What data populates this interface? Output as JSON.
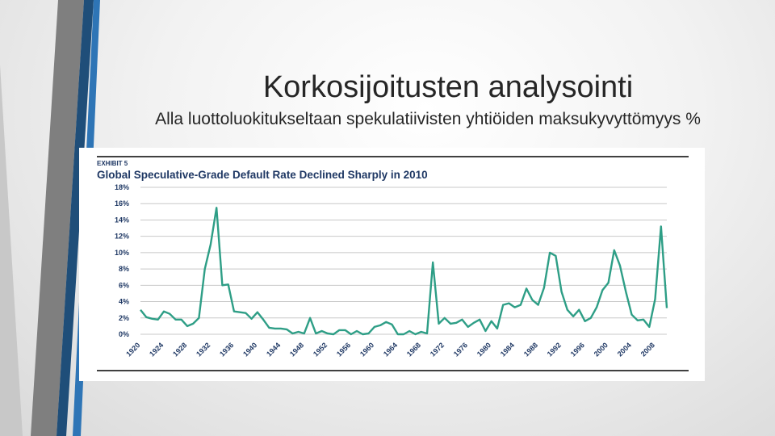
{
  "slide": {
    "title": "Korkosijoitusten analysointi",
    "subtitle": "Alla luottoluokitukseltaan spekulatiivisten yhtiöiden maksukyvyttömyys %"
  },
  "colors": {
    "accent_dark": "#1f4e79",
    "accent_blue": "#2e75b6",
    "accent_gray": "#7f7f7f",
    "line": "#2e9e86",
    "exhibit_text": "#1f3864"
  },
  "chart_data": {
    "type": "line",
    "exhibit": "EXHIBIT 5",
    "title": "Global Speculative-Grade Default Rate Declined Sharply in 2010",
    "ylim": [
      0,
      18
    ],
    "yticks": [
      "18%",
      "16%",
      "14%",
      "12%",
      "10%",
      "8%",
      "6%",
      "4%",
      "2%",
      "0%"
    ],
    "xticks": [
      "1920",
      "1924",
      "1928",
      "1932",
      "1936",
      "1940",
      "1944",
      "1948",
      "1952",
      "1956",
      "1960",
      "1964",
      "1968",
      "1972",
      "1976",
      "1980",
      "1984",
      "1988",
      "1992",
      "1996",
      "2000",
      "2004",
      "2008"
    ],
    "grid": true,
    "series": [
      {
        "x": [
          1920,
          1921,
          1922,
          1923,
          1924,
          1925,
          1926,
          1927,
          1928,
          1929,
          1930,
          1931,
          1932,
          1933,
          1934,
          1935,
          1936,
          1937,
          1938,
          1939,
          1940,
          1941,
          1942,
          1943,
          1944,
          1945,
          1946,
          1947,
          1948,
          1949,
          1950,
          1951,
          1952,
          1953,
          1954,
          1955,
          1956,
          1957,
          1958,
          1959,
          1960,
          1961,
          1962,
          1963,
          1964,
          1965,
          1966,
          1967,
          1968,
          1969,
          1970,
          1971,
          1972,
          1973,
          1974,
          1975,
          1976,
          1977,
          1978,
          1979,
          1980,
          1981,
          1982,
          1983,
          1984,
          1985,
          1986,
          1987,
          1988,
          1989,
          1990,
          1991,
          1992,
          1993,
          1994,
          1995,
          1996,
          1997,
          1998,
          1999,
          2000,
          2001,
          2002,
          2003,
          2004,
          2005,
          2006,
          2007,
          2008,
          2009,
          2010
        ],
        "y": [
          3.0,
          2.1,
          1.9,
          1.8,
          2.8,
          2.5,
          1.8,
          1.8,
          1.0,
          1.3,
          2.0,
          8.0,
          11.0,
          15.5,
          6.0,
          6.1,
          2.8,
          2.7,
          2.6,
          1.9,
          2.7,
          1.8,
          0.8,
          0.7,
          0.7,
          0.6,
          0.1,
          0.3,
          0.1,
          2.0,
          0.1,
          0.4,
          0.1,
          0.0,
          0.5,
          0.5,
          0.0,
          0.4,
          0.0,
          0.1,
          0.9,
          1.1,
          1.5,
          1.2,
          0.0,
          0.0,
          0.4,
          0.0,
          0.3,
          0.1,
          8.8,
          1.3,
          2.0,
          1.3,
          1.4,
          1.8,
          0.9,
          1.4,
          1.8,
          0.4,
          1.6,
          0.7,
          3.6,
          3.8,
          3.3,
          3.6,
          5.6,
          4.2,
          3.6,
          5.7,
          10.0,
          9.6,
          5.2,
          3.0,
          2.2,
          3.0,
          1.6,
          2.0,
          3.3,
          5.4,
          6.3,
          10.3,
          8.4,
          5.2,
          2.4,
          1.7,
          1.8,
          0.9,
          4.3,
          13.2,
          3.2
        ]
      }
    ]
  }
}
